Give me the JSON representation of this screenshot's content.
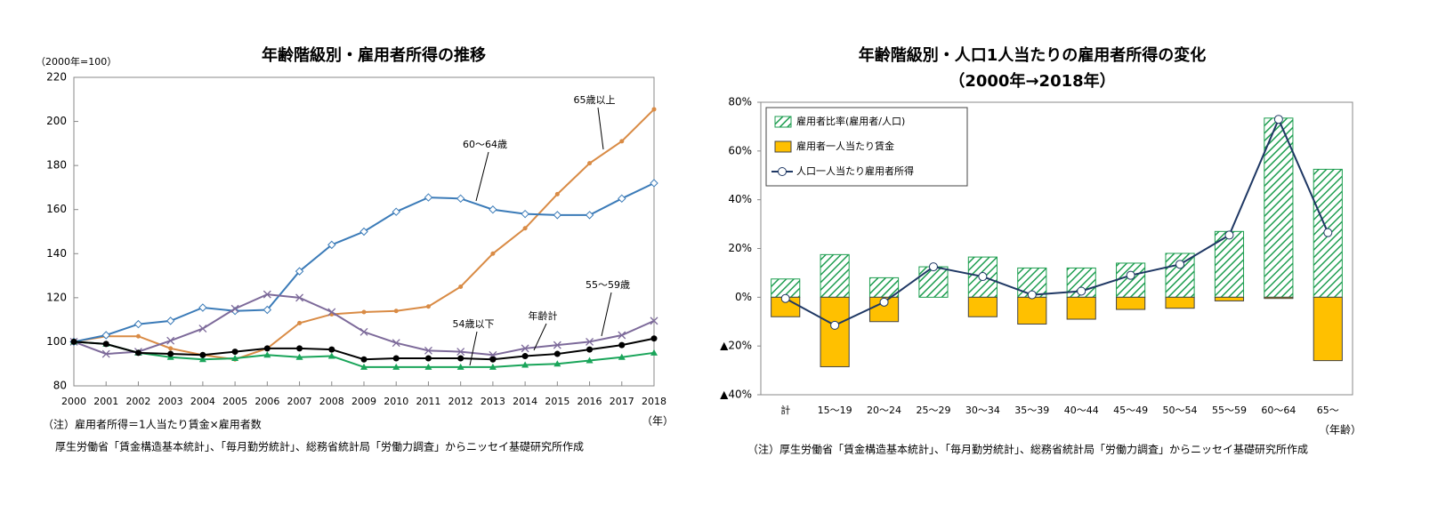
{
  "chart_data": [
    {
      "type": "line",
      "title": "年齢階級別・雇用者所得の推移",
      "y_unit": "（2000年=100）",
      "x_label": "（年）",
      "x": [
        2000,
        2001,
        2002,
        2003,
        2004,
        2005,
        2006,
        2007,
        2008,
        2009,
        2010,
        2011,
        2012,
        2013,
        2014,
        2015,
        2016,
        2017,
        2018
      ],
      "xlim": [
        2000,
        2018
      ],
      "xticks": [
        2000,
        2001,
        2002,
        2003,
        2004,
        2005,
        2006,
        2007,
        2008,
        2009,
        2010,
        2011,
        2012,
        2013,
        2014,
        2015,
        2016,
        2017,
        2018
      ],
      "ylim": [
        80,
        220
      ],
      "yticks": [
        80,
        100,
        120,
        140,
        160,
        180,
        200,
        220
      ],
      "grid": false,
      "series": [
        {
          "name": "65歳以上",
          "color": "#d98b45",
          "marker": "dot",
          "values": [
            100,
            102.5,
            102.5,
            97,
            94,
            92,
            97,
            108.5,
            112.5,
            113.5,
            114,
            116,
            125,
            140,
            151.5,
            167,
            181,
            191,
            205.5
          ]
        },
        {
          "name": "60～64歳",
          "color": "#3b7bb8",
          "marker": "diamond",
          "values": [
            100,
            103,
            108,
            109.5,
            115.5,
            114,
            114.5,
            132,
            144,
            150,
            159,
            165.5,
            165,
            160,
            158,
            157.5,
            157.5,
            165,
            172
          ]
        },
        {
          "name": "55～59歳",
          "color": "#7d6a9a",
          "marker": "cross",
          "values": [
            100,
            94.5,
            95.5,
            100.5,
            106,
            115,
            121.5,
            120,
            113.5,
            104.5,
            99.5,
            96,
            95.5,
            94,
            97,
            98.5,
            100,
            103,
            109.5
          ]
        },
        {
          "name": "54歳以下",
          "color": "#1aa55a",
          "marker": "triangle",
          "values": [
            100,
            99,
            95,
            93,
            92,
            92.5,
            94,
            93,
            93.5,
            88.5,
            88.5,
            88.5,
            88.5,
            88.5,
            89.5,
            90,
            91.5,
            93,
            95
          ]
        },
        {
          "name": "年齢計",
          "color": "#000000",
          "marker": "circle",
          "values": [
            100,
            99,
            95,
            94.5,
            94,
            95.5,
            97,
            97,
            96.5,
            92,
            92.5,
            92.5,
            92.5,
            92,
            93.5,
            94.5,
            96.5,
            98.5,
            101.5
          ]
        }
      ],
      "notes": [
        "（注）雇用者所得＝1人当たり賃金×雇用者数",
        "厚生労働省「賃金構造基本統計」、「毎月勤労統計」、総務省統計局「労働力調査」からニッセイ基礎研究所作成"
      ]
    },
    {
      "type": "bar",
      "title": [
        "年齢階級別・人口1人当たりの雇用者所得の変化",
        "（2000年→2018年）"
      ],
      "x_label": "（年齢）",
      "categories": [
        "計",
        "15～19",
        "20～24",
        "25～29",
        "30～34",
        "35～39",
        "40～44",
        "45～49",
        "50～54",
        "55～59",
        "60～64",
        "65～"
      ],
      "ylim": [
        -40,
        80
      ],
      "yticks": [
        {
          "value": -40,
          "label": "▲40%"
        },
        {
          "value": -20,
          "label": "▲20%"
        },
        {
          "value": 0,
          "label": "0%"
        },
        {
          "value": 20,
          "label": "20%"
        },
        {
          "value": 40,
          "label": "40%"
        },
        {
          "value": 60,
          "label": "60%"
        },
        {
          "value": 80,
          "label": "80%"
        }
      ],
      "grid": false,
      "legend": "top-left",
      "series": [
        {
          "name": "雇用者比率(雇用者/人口)",
          "type": "bar",
          "hatch": true,
          "color": "#1e9e50",
          "values": [
            7.5,
            17.5,
            8,
            12.5,
            16.5,
            12,
            12,
            14,
            18,
            27,
            73.5,
            52.5
          ]
        },
        {
          "name": "雇用者一人当たり賃金",
          "type": "bar",
          "hatch": false,
          "color": "#ffc000",
          "values": [
            -8,
            -28.5,
            -10,
            0,
            -8,
            -11,
            -9,
            -5,
            -4.5,
            -1.5,
            -0.5,
            -26
          ]
        },
        {
          "name": "人口一人当たり雇用者所得",
          "type": "line",
          "color": "#1f3864",
          "values": [
            -0.5,
            -11.5,
            -2,
            12.5,
            8.5,
            1,
            2.5,
            9,
            13.5,
            25.5,
            73,
            26.5
          ]
        }
      ],
      "notes": [
        "（注）厚生労働省「賃金構造基本統計」、「毎月勤労統計」、総務省統計局「労働力調査」からニッセイ基礎研究所作成"
      ]
    }
  ]
}
